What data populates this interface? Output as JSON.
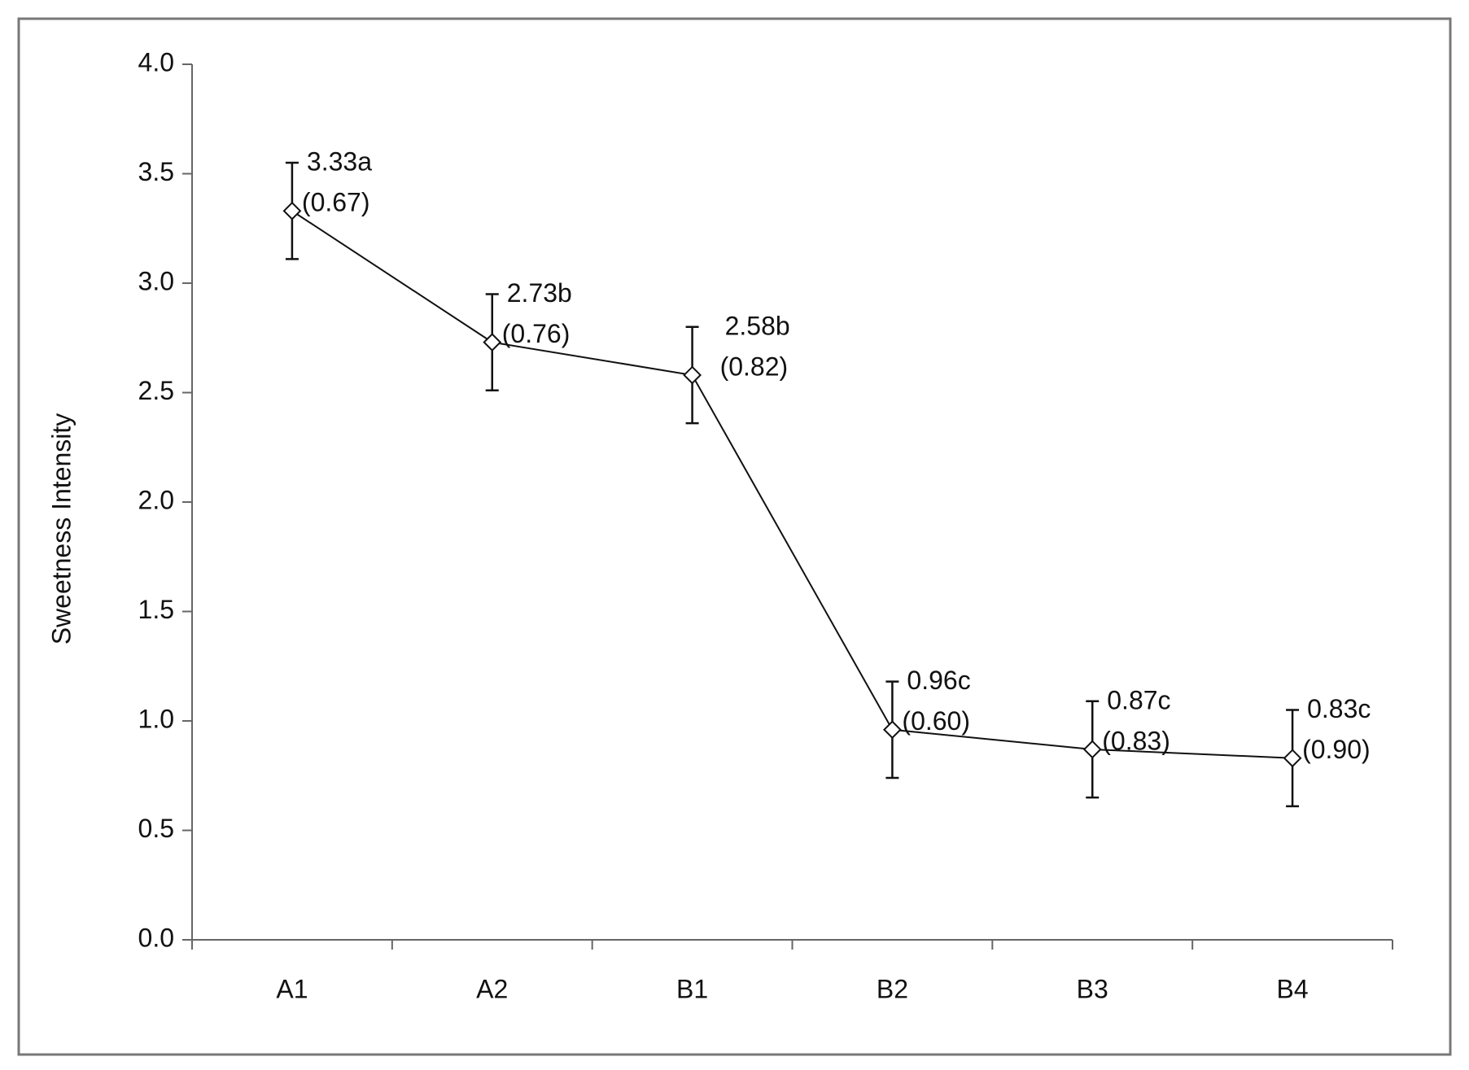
{
  "chart_data": {
    "type": "line",
    "ylabel": "Sweetness Intensity",
    "categories": [
      "A1",
      "A2",
      "B1",
      "B2",
      "B3",
      "B4"
    ],
    "series": [
      {
        "color": "#111111",
        "values": [
          3.33,
          2.73,
          2.58,
          0.96,
          0.87,
          0.83
        ],
        "value_labels": [
          "3.33a",
          "2.73b",
          "2.58b",
          "0.96c",
          "0.87c",
          "0.83c"
        ],
        "notes": [
          "(0.67)",
          "(0.76)",
          "(0.82)",
          "(0.60)",
          "(0.83)",
          "(0.90)"
        ],
        "errors": [
          0.22,
          0.22,
          0.22,
          0.22,
          0.22,
          0.22
        ]
      }
    ],
    "ylim": [
      0,
      4
    ],
    "yticks": [
      {
        "value": 0,
        "label": "0.0"
      },
      {
        "value": 0.5,
        "label": "0.5"
      },
      {
        "value": 1,
        "label": "1.0"
      },
      {
        "value": 1.5,
        "label": "1.5"
      },
      {
        "value": 2,
        "label": "2.0"
      },
      {
        "value": 2.5,
        "label": "2.5"
      },
      {
        "value": 3,
        "label": "3.0"
      },
      {
        "value": 3.5,
        "label": "3.5"
      },
      {
        "value": 4,
        "label": "4.0"
      }
    ],
    "grid": false
  }
}
